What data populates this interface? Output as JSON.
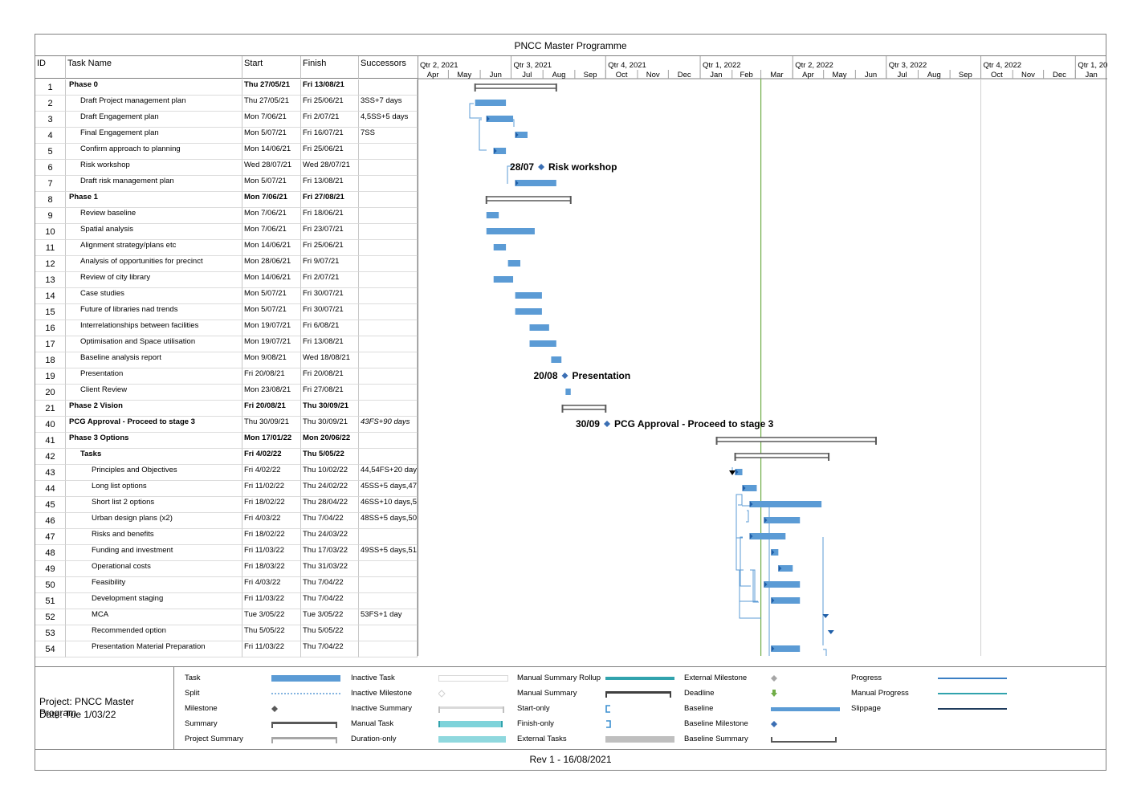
{
  "title": "PNCC Master Programme",
  "columns": {
    "id": "ID",
    "name": "Task Name",
    "start": "Start",
    "finish": "Finish",
    "successors": "Successors"
  },
  "timescale": {
    "quarters": [
      "Qtr 2, 2021",
      "Qtr 3, 2021",
      "Qtr 4, 2021",
      "Qtr 1, 2022",
      "Qtr 2, 2022",
      "Qtr 3, 2022",
      "Qtr 4, 2022",
      "Qtr 1, 202"
    ],
    "months": [
      "Apr",
      "May",
      "Jun",
      "Jul",
      "Aug",
      "Sep",
      "Oct",
      "Nov",
      "Dec",
      "Jan",
      "Feb",
      "Mar",
      "Apr",
      "May",
      "Jun",
      "Jul",
      "Aug",
      "Sep",
      "Oct",
      "Nov",
      "Dec",
      "Jan"
    ]
  },
  "status_date": "2022-03-01",
  "tasks": [
    {
      "id": "1",
      "name": "Phase 0",
      "start": "Thu 27/05/21",
      "finish": "Fri 13/08/21",
      "succ": "",
      "level": 0,
      "type": "summary",
      "s": "2021-05-27",
      "f": "2021-08-13"
    },
    {
      "id": "2",
      "name": "Draft Project management plan",
      "start": "Thu 27/05/21",
      "finish": "Fri 25/06/21",
      "succ": "3SS+7 days",
      "level": 1,
      "type": "task",
      "s": "2021-05-27",
      "f": "2021-06-25"
    },
    {
      "id": "3",
      "name": "Draft Engagement plan",
      "start": "Mon 7/06/21",
      "finish": "Fri 2/07/21",
      "succ": "4,5SS+5 days",
      "level": 1,
      "type": "task",
      "s": "2021-06-07",
      "f": "2021-07-02"
    },
    {
      "id": "4",
      "name": "Final Engagement plan",
      "start": "Mon 5/07/21",
      "finish": "Fri 16/07/21",
      "succ": "7SS",
      "level": 1,
      "type": "task",
      "s": "2021-07-05",
      "f": "2021-07-16"
    },
    {
      "id": "5",
      "name": "Confirm approach to planning",
      "start": "Mon 14/06/21",
      "finish": "Fri 25/06/21",
      "succ": "",
      "level": 1,
      "type": "task",
      "s": "2021-06-14",
      "f": "2021-06-25"
    },
    {
      "id": "6",
      "name": "Risk workshop",
      "start": "Wed 28/07/21",
      "finish": "Wed 28/07/21",
      "succ": "",
      "level": 1,
      "type": "milestone",
      "s": "2021-07-28",
      "f": "2021-07-28",
      "mdate": "28/07",
      "mlabel": "Risk workshop"
    },
    {
      "id": "7",
      "name": "Draft risk management plan",
      "start": "Mon 5/07/21",
      "finish": "Fri 13/08/21",
      "succ": "",
      "level": 1,
      "type": "task",
      "s": "2021-07-05",
      "f": "2021-08-13"
    },
    {
      "id": "8",
      "name": "Phase 1",
      "start": "Mon 7/06/21",
      "finish": "Fri 27/08/21",
      "succ": "",
      "level": 0,
      "type": "summary",
      "s": "2021-06-07",
      "f": "2021-08-27"
    },
    {
      "id": "9",
      "name": "Review baseline",
      "start": "Mon 7/06/21",
      "finish": "Fri 18/06/21",
      "succ": "",
      "level": 1,
      "type": "task",
      "s": "2021-06-07",
      "f": "2021-06-18"
    },
    {
      "id": "10",
      "name": "Spatial analysis",
      "start": "Mon 7/06/21",
      "finish": "Fri 23/07/21",
      "succ": "",
      "level": 1,
      "type": "task",
      "s": "2021-06-07",
      "f": "2021-07-23"
    },
    {
      "id": "11",
      "name": "Alignment strategy/plans etc",
      "start": "Mon 14/06/21",
      "finish": "Fri 25/06/21",
      "succ": "",
      "level": 1,
      "type": "task",
      "s": "2021-06-14",
      "f": "2021-06-25"
    },
    {
      "id": "12",
      "name": "Analysis of opportunities for precinct",
      "start": "Mon 28/06/21",
      "finish": "Fri 9/07/21",
      "succ": "",
      "level": 1,
      "type": "task",
      "s": "2021-06-28",
      "f": "2021-07-09"
    },
    {
      "id": "13",
      "name": "Review of city library",
      "start": "Mon 14/06/21",
      "finish": "Fri 2/07/21",
      "succ": "",
      "level": 1,
      "type": "task",
      "s": "2021-06-14",
      "f": "2021-07-02"
    },
    {
      "id": "14",
      "name": "Case studies",
      "start": "Mon 5/07/21",
      "finish": "Fri 30/07/21",
      "succ": "",
      "level": 1,
      "type": "task",
      "s": "2021-07-05",
      "f": "2021-07-30"
    },
    {
      "id": "15",
      "name": "Future of libraries nad trends",
      "start": "Mon 5/07/21",
      "finish": "Fri 30/07/21",
      "succ": "",
      "level": 1,
      "type": "task",
      "s": "2021-07-05",
      "f": "2021-07-30"
    },
    {
      "id": "16",
      "name": "Interrelationships between facilities",
      "start": "Mon 19/07/21",
      "finish": "Fri 6/08/21",
      "succ": "",
      "level": 1,
      "type": "task",
      "s": "2021-07-19",
      "f": "2021-08-06"
    },
    {
      "id": "17",
      "name": "Optimisation and Space utilisation",
      "start": "Mon 19/07/21",
      "finish": "Fri 13/08/21",
      "succ": "",
      "level": 1,
      "type": "task",
      "s": "2021-07-19",
      "f": "2021-08-13"
    },
    {
      "id": "18",
      "name": "Baseline analysis report",
      "start": "Mon 9/08/21",
      "finish": "Wed 18/08/21",
      "succ": "",
      "level": 1,
      "type": "task",
      "s": "2021-08-09",
      "f": "2021-08-18"
    },
    {
      "id": "19",
      "name": "Presentation",
      "start": "Fri 20/08/21",
      "finish": "Fri 20/08/21",
      "succ": "",
      "level": 1,
      "type": "milestone",
      "s": "2021-08-20",
      "f": "2021-08-20",
      "mdate": "20/08",
      "mlabel": "Presentation"
    },
    {
      "id": "20",
      "name": "Client Review",
      "start": "Mon 23/08/21",
      "finish": "Fri 27/08/21",
      "succ": "",
      "level": 1,
      "type": "task",
      "s": "2021-08-23",
      "f": "2021-08-27"
    },
    {
      "id": "21",
      "name": "Phase 2 Vision",
      "start": "Fri 20/08/21",
      "finish": "Thu 30/09/21",
      "succ": "",
      "level": 0,
      "type": "summary",
      "s": "2021-08-20",
      "f": "2021-09-30"
    },
    {
      "id": "40",
      "name": "PCG Approval - Proceed to stage 3",
      "start": "Thu 30/09/21",
      "finish": "Thu 30/09/21",
      "succ": "43FS+90 days",
      "level": 0,
      "type": "milestone",
      "s": "2021-09-30",
      "f": "2021-09-30",
      "mdate": "30/09",
      "mlabel": "PCG Approval - Proceed to stage 3",
      "italSucc": true
    },
    {
      "id": "41",
      "name": "Phase 3 Options",
      "start": "Mon 17/01/22",
      "finish": "Mon 20/06/22",
      "succ": "",
      "level": 0,
      "type": "summary",
      "s": "2022-01-17",
      "f": "2022-06-20"
    },
    {
      "id": "42",
      "name": "Tasks",
      "start": "Fri 4/02/22",
      "finish": "Thu 5/05/22",
      "succ": "",
      "level": 1,
      "type": "summary",
      "s": "2022-02-04",
      "f": "2022-05-05",
      "boldRow": true
    },
    {
      "id": "43",
      "name": "Principles and Objectives",
      "start": "Fri 4/02/22",
      "finish": "Thu 10/02/22",
      "succ": "44,54FS+20 day",
      "level": 2,
      "type": "task",
      "s": "2022-02-04",
      "f": "2022-02-10"
    },
    {
      "id": "44",
      "name": "Long list options",
      "start": "Fri 11/02/22",
      "finish": "Thu 24/02/22",
      "succ": "45SS+5 days,47",
      "level": 2,
      "type": "task",
      "s": "2022-02-11",
      "f": "2022-02-24"
    },
    {
      "id": "45",
      "name": "Short list 2 options",
      "start": "Fri 18/02/22",
      "finish": "Thu 28/04/22",
      "succ": "46SS+10 days,5",
      "level": 2,
      "type": "task",
      "s": "2022-02-18",
      "f": "2022-04-28"
    },
    {
      "id": "46",
      "name": "Urban design plans (x2)",
      "start": "Fri 4/03/22",
      "finish": "Thu 7/04/22",
      "succ": "48SS+5 days,50",
      "level": 2,
      "type": "task",
      "s": "2022-03-04",
      "f": "2022-04-07"
    },
    {
      "id": "47",
      "name": "Risks and benefits",
      "start": "Fri 18/02/22",
      "finish": "Thu 24/03/22",
      "succ": "",
      "level": 2,
      "type": "task",
      "s": "2022-02-18",
      "f": "2022-03-24"
    },
    {
      "id": "48",
      "name": "Funding and investment",
      "start": "Fri 11/03/22",
      "finish": "Thu 17/03/22",
      "succ": "49SS+5 days,51",
      "level": 2,
      "type": "task",
      "s": "2022-03-11",
      "f": "2022-03-17"
    },
    {
      "id": "49",
      "name": "Operational costs",
      "start": "Fri 18/03/22",
      "finish": "Thu 31/03/22",
      "succ": "",
      "level": 2,
      "type": "task",
      "s": "2022-03-18",
      "f": "2022-03-31"
    },
    {
      "id": "50",
      "name": "Feasibility",
      "start": "Fri 4/03/22",
      "finish": "Thu 7/04/22",
      "succ": "",
      "level": 2,
      "type": "task",
      "s": "2022-03-04",
      "f": "2022-04-07"
    },
    {
      "id": "51",
      "name": "Development staging",
      "start": "Fri 11/03/22",
      "finish": "Thu 7/04/22",
      "succ": "",
      "level": 2,
      "type": "task",
      "s": "2022-03-11",
      "f": "2022-04-07"
    },
    {
      "id": "52",
      "name": "MCA",
      "start": "Tue 3/05/22",
      "finish": "Tue 3/05/22",
      "succ": "53FS+1 day",
      "level": 2,
      "type": "milestone-arrow",
      "s": "2022-05-03",
      "f": "2022-05-03"
    },
    {
      "id": "53",
      "name": "Recommended option",
      "start": "Thu 5/05/22",
      "finish": "Thu 5/05/22",
      "succ": "",
      "level": 2,
      "type": "milestone-arrow",
      "s": "2022-05-05",
      "f": "2022-05-05"
    },
    {
      "id": "54",
      "name": "Presentation Material Preparation",
      "start": "Fri 11/03/22",
      "finish": "Thu 7/04/22",
      "succ": "",
      "level": 2,
      "type": "task",
      "s": "2022-03-11",
      "f": "2022-04-07"
    }
  ],
  "project_info": {
    "project": "Project: PNCC Master Program",
    "date": "Date: Tue 1/03/22"
  },
  "legend": [
    {
      "label": "Task",
      "sym": "task"
    },
    {
      "label": "Split",
      "sym": "split"
    },
    {
      "label": "Milestone",
      "sym": "milestone"
    },
    {
      "label": "Summary",
      "sym": "summary"
    },
    {
      "label": "Project Summary",
      "sym": "projsummary"
    },
    {
      "label": "Inactive Task",
      "sym": "inactivetask"
    },
    {
      "label": "Inactive Milestone",
      "sym": "inactivemilestone"
    },
    {
      "label": "Inactive Summary",
      "sym": "inactivesummary"
    },
    {
      "label": "Manual Task",
      "sym": "manualtask"
    },
    {
      "label": "Duration-only",
      "sym": "durationonly"
    },
    {
      "label": "Manual Summary Rollup",
      "sym": "manualrollup"
    },
    {
      "label": "Manual Summary",
      "sym": "manualsummary"
    },
    {
      "label": "Start-only",
      "sym": "startonly"
    },
    {
      "label": "Finish-only",
      "sym": "finishonly"
    },
    {
      "label": "External Tasks",
      "sym": "externaltasks"
    },
    {
      "label": "External Milestone",
      "sym": "externalmilestone"
    },
    {
      "label": "Deadline",
      "sym": "deadline"
    },
    {
      "label": "Baseline",
      "sym": "baseline"
    },
    {
      "label": "Baseline Milestone",
      "sym": "baselinemilestone"
    },
    {
      "label": "Baseline Summary",
      "sym": "baselinesummary"
    },
    {
      "label": "Progress",
      "sym": "progress"
    },
    {
      "label": "Manual Progress",
      "sym": "manualprogress"
    },
    {
      "label": "Slippage",
      "sym": "slippage"
    }
  ],
  "footer": "Rev 1 - 16/08/2021",
  "colors": {
    "task": "#5b9bd5",
    "summary": "#595959",
    "milestone": "#3b6fb4",
    "status": "#70ad47",
    "link": "#5b9bd5"
  }
}
